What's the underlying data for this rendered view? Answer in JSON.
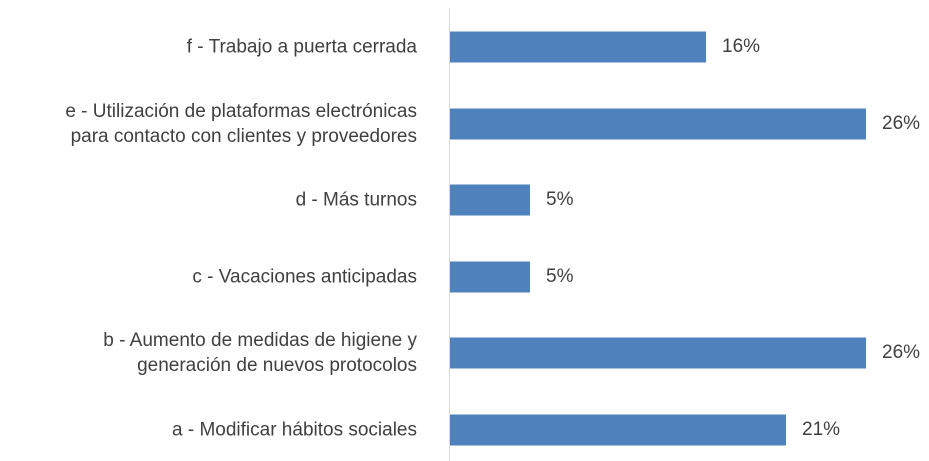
{
  "chart_data": {
    "type": "bar",
    "orientation": "horizontal",
    "categories": [
      "f - Trabajo a puerta cerrada",
      "e - Utilización de plataformas electrónicas\npara contacto con clientes y proveedores",
      "d - Más turnos",
      "c - Vacaciones anticipadas",
      "b - Aumento de medidas de higiene y\ngeneración de nuevos protocolos",
      "a - Modificar hábitos sociales"
    ],
    "values": [
      16,
      26,
      5,
      5,
      26,
      21
    ],
    "value_labels": [
      "16%",
      "26%",
      "5%",
      "5%",
      "26%",
      "21%"
    ],
    "color": "#4f81bd"
  }
}
